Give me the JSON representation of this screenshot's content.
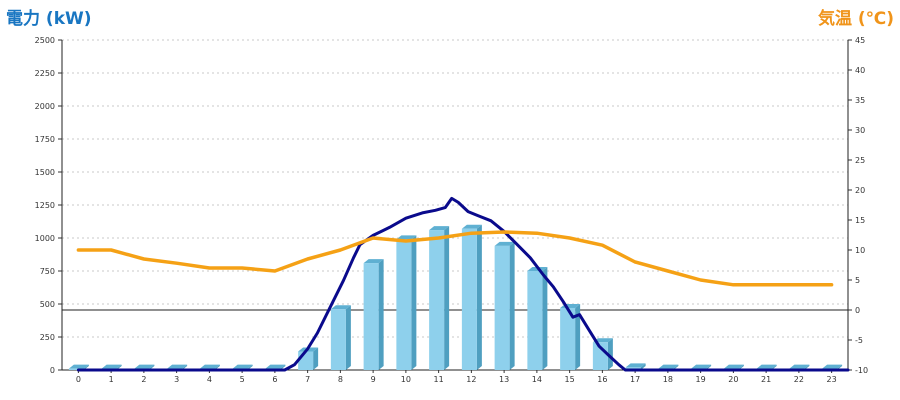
{
  "chart_data": {
    "type": "bar",
    "y_left_label": "電力 (kW)",
    "y_right_label": "気温 (℃)",
    "categories": [
      "0",
      "1",
      "2",
      "3",
      "4",
      "5",
      "6",
      "7",
      "8",
      "9",
      "10",
      "11",
      "12",
      "13",
      "14",
      "15",
      "16",
      "17",
      "18",
      "19",
      "20",
      "21",
      "22",
      "23"
    ],
    "y_left_ticks": [
      "0",
      "250",
      "500",
      "750",
      "1000",
      "1250",
      "1500",
      "1750",
      "2000",
      "2250",
      "2500"
    ],
    "y_right_ticks": [
      "-10",
      "-5",
      "0",
      "5",
      "10",
      "15",
      "20",
      "25",
      "30",
      "35",
      "40",
      "45"
    ],
    "ylim_left": [
      0,
      2500
    ],
    "ylim_right": [
      -10,
      45
    ],
    "grid": true,
    "series": [
      {
        "type": "bar",
        "axis": "left",
        "color": "#8ed0ec",
        "values": [
          10,
          10,
          10,
          10,
          10,
          10,
          10,
          140,
          460,
          810,
          990,
          1060,
          1070,
          940,
          750,
          470,
          210,
          20,
          10,
          10,
          10,
          10,
          10,
          10
        ]
      },
      {
        "type": "line",
        "axis": "left",
        "color": "#0a0a8c",
        "points": [
          [
            0,
            0
          ],
          [
            6.3,
            0
          ],
          [
            6.6,
            40
          ],
          [
            7,
            160
          ],
          [
            7.3,
            280
          ],
          [
            7.7,
            480
          ],
          [
            8.1,
            680
          ],
          [
            8.4,
            850
          ],
          [
            8.6,
            950
          ],
          [
            9,
            1020
          ],
          [
            9.5,
            1080
          ],
          [
            10,
            1150
          ],
          [
            10.5,
            1190
          ],
          [
            10.9,
            1210
          ],
          [
            11.2,
            1230
          ],
          [
            11.4,
            1300
          ],
          [
            11.6,
            1270
          ],
          [
            11.9,
            1200
          ],
          [
            12.2,
            1170
          ],
          [
            12.6,
            1130
          ],
          [
            13,
            1050
          ],
          [
            13.4,
            950
          ],
          [
            13.8,
            850
          ],
          [
            14.2,
            720
          ],
          [
            14.5,
            630
          ],
          [
            14.8,
            520
          ],
          [
            15.1,
            400
          ],
          [
            15.3,
            420
          ],
          [
            15.6,
            300
          ],
          [
            15.9,
            180
          ],
          [
            16.2,
            110
          ],
          [
            16.5,
            40
          ],
          [
            16.7,
            0
          ],
          [
            23.5,
            0
          ]
        ]
      },
      {
        "type": "line",
        "axis": "right",
        "color": "#f5a115",
        "points": [
          [
            0,
            10
          ],
          [
            1,
            10
          ],
          [
            2,
            8.5
          ],
          [
            3,
            7.8
          ],
          [
            4,
            7
          ],
          [
            5,
            7
          ],
          [
            6,
            6.5
          ],
          [
            7,
            8.5
          ],
          [
            8,
            10
          ],
          [
            9,
            12
          ],
          [
            10,
            11.5
          ],
          [
            11,
            12
          ],
          [
            12,
            12.8
          ],
          [
            13,
            13
          ],
          [
            14,
            12.8
          ],
          [
            15,
            12
          ],
          [
            16,
            10.8
          ],
          [
            17,
            8
          ],
          [
            18,
            6.5
          ],
          [
            19,
            5
          ],
          [
            20,
            4.2
          ],
          [
            21,
            4.2
          ],
          [
            22,
            4.2
          ],
          [
            23,
            4.2
          ]
        ]
      }
    ]
  }
}
